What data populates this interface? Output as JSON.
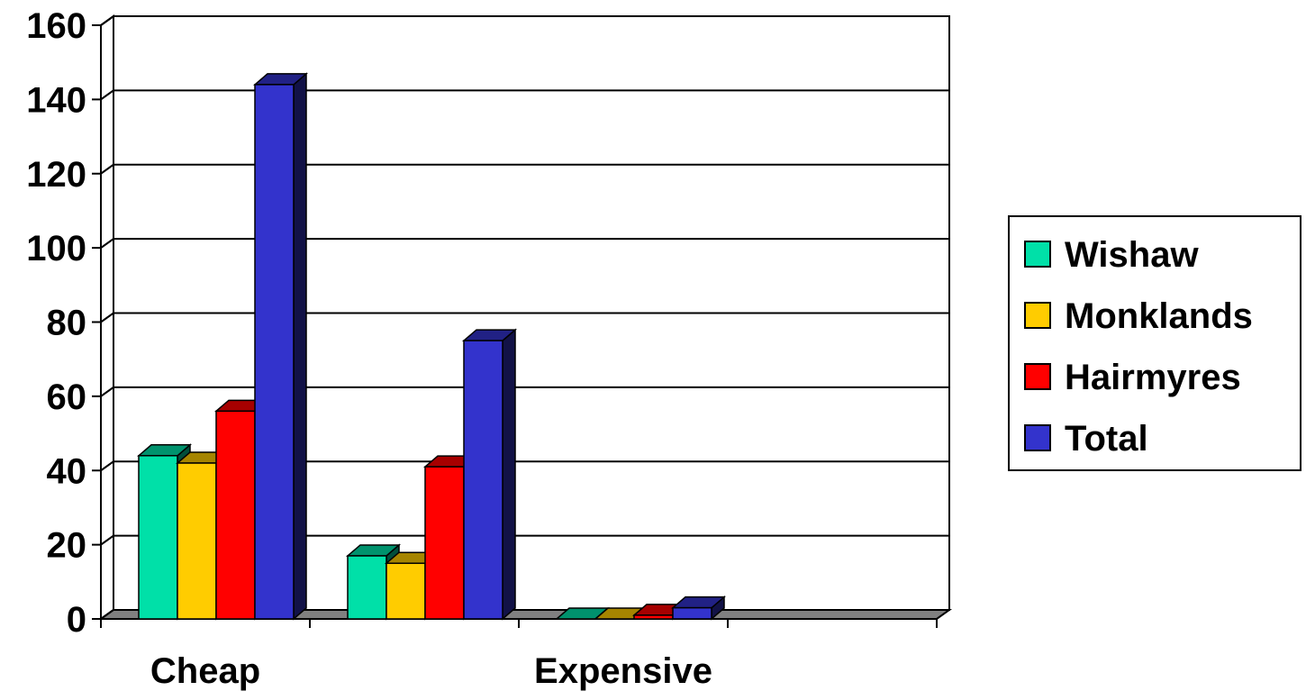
{
  "chart_data": {
    "type": "bar",
    "style": "3d-clustered-column",
    "categories": [
      "Cheap",
      "",
      "Expensive",
      ""
    ],
    "series": [
      {
        "name": "Wishaw",
        "values": [
          44,
          17,
          0,
          0
        ],
        "color": "#00E0A8"
      },
      {
        "name": "Monklands",
        "values": [
          42,
          15,
          0,
          0
        ],
        "color": "#FFCC00"
      },
      {
        "name": "Hairmyres",
        "values": [
          56,
          41,
          1,
          0
        ],
        "color": "#FF0000"
      },
      {
        "name": "Total",
        "values": [
          144,
          75,
          3,
          0
        ],
        "color": "#3333CC"
      }
    ],
    "ylim": [
      0,
      160
    ],
    "yticks": [
      "0",
      "20",
      "40",
      "60",
      "80",
      "100",
      "120",
      "140",
      "160"
    ],
    "grid": true,
    "legend": "right",
    "title": "",
    "xlabel": "",
    "ylabel": ""
  }
}
